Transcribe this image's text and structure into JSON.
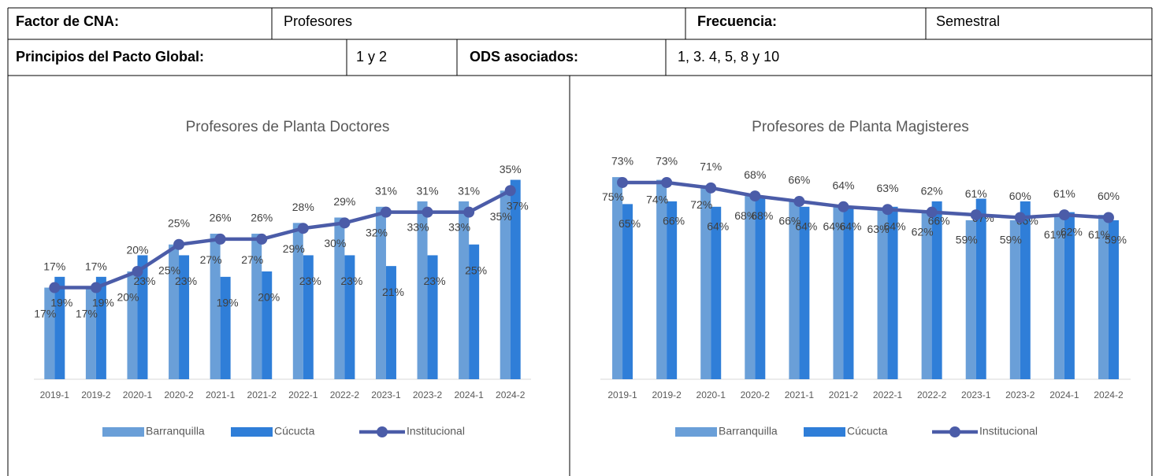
{
  "table": {
    "rows": [
      [
        "Factor de CNA:",
        "Profesores",
        "Frecuencia:",
        "Semestral"
      ],
      [
        "Principios del Pacto Global:",
        "1 y 2",
        "ODS asociados:",
        "1, 3. 4, 5, 8 y 10"
      ]
    ]
  },
  "chart_data": [
    {
      "type": "bar-line",
      "title": "Profesores de Planta Doctores",
      "categories": [
        "2019-1",
        "2019-2",
        "2020-1",
        "2020-2",
        "2021-1",
        "2021-2",
        "2022-1",
        "2022-2",
        "2023-1",
        "2023-2",
        "2024-1",
        "2024-2"
      ],
      "ylim": [
        0,
        40
      ],
      "series": [
        {
          "name": "Barranquilla",
          "color": "#6a9fd8",
          "kind": "bar",
          "values": [
            17,
            17,
            20,
            25,
            27,
            27,
            29,
            30,
            32,
            33,
            33,
            35
          ],
          "value_labels": [
            "17%",
            "17%",
            "20%",
            "25%",
            "27%",
            "27%",
            "29%",
            "30%",
            "32%",
            "33%",
            "33%",
            "35%"
          ]
        },
        {
          "name": "Cúcucta",
          "color": "#2f7ed8",
          "kind": "bar",
          "values": [
            19,
            19,
            23,
            23,
            19,
            20,
            23,
            23,
            21,
            23,
            25,
            37
          ],
          "value_labels": [
            "19%",
            "19%",
            "23%",
            "23%",
            "19%",
            "20%",
            "23%",
            "23%",
            "21%",
            "23%",
            "25%",
            "37%"
          ]
        },
        {
          "name": "Institucional",
          "color": "#4b5ca8",
          "kind": "line",
          "values": [
            17,
            17,
            20,
            25,
            26,
            26,
            28,
            29,
            31,
            31,
            31,
            35
          ],
          "value_labels": [
            "17%",
            "17%",
            "20%",
            "25%",
            "26%",
            "26%",
            "28%",
            "29%",
            "31%",
            "31%",
            "31%",
            "35%"
          ]
        }
      ]
    },
    {
      "type": "bar-line",
      "title": "Profesores de Planta Magisteres",
      "categories": [
        "2019-1",
        "2019-2",
        "2020-1",
        "2020-2",
        "2021-1",
        "2021-2",
        "2022-1",
        "2022-2",
        "2023-1",
        "2023-2",
        "2024-1",
        "2024-2"
      ],
      "ylim": [
        0,
        80
      ],
      "series": [
        {
          "name": "Barranquilla",
          "color": "#6a9fd8",
          "kind": "bar",
          "values": [
            75,
            74,
            72,
            68,
            66,
            64,
            63,
            62,
            59,
            59,
            61,
            61
          ],
          "value_labels": [
            "75%",
            "74%",
            "72%",
            "68%",
            "66%",
            "64%",
            "63%",
            "62%",
            "59%",
            "59%",
            "61%",
            "61%"
          ]
        },
        {
          "name": "Cúcucta",
          "color": "#2f7ed8",
          "kind": "bar",
          "values": [
            65,
            66,
            64,
            68,
            64,
            64,
            64,
            66,
            67,
            66,
            62,
            59
          ],
          "value_labels": [
            "65%",
            "66%",
            "64%",
            "68%",
            "64%",
            "64%",
            "64%",
            "66%",
            "67%",
            "66%",
            "62%",
            "59%"
          ]
        },
        {
          "name": "Institucional",
          "color": "#4b5ca8",
          "kind": "line",
          "values": [
            73,
            73,
            71,
            68,
            66,
            64,
            63,
            62,
            61,
            60,
            61,
            60
          ],
          "value_labels": [
            "73%",
            "73%",
            "71%",
            "68%",
            "66%",
            "64%",
            "63%",
            "62%",
            "61%",
            "60%",
            "61%",
            "60%"
          ]
        }
      ]
    }
  ]
}
